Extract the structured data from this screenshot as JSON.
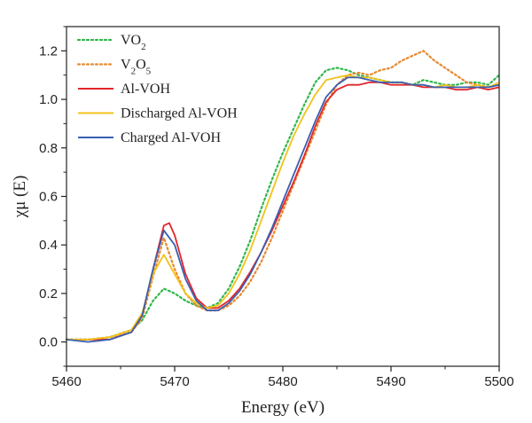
{
  "chart_data": {
    "type": "line",
    "xlabel": "Energy (eV)",
    "ylabel": "χμ (E)",
    "xlim": [
      5460,
      5500
    ],
    "ylim": [
      -0.1,
      1.3
    ],
    "x_ticks": [
      5460,
      5470,
      5480,
      5490,
      5500
    ],
    "x_tick_labels": [
      "5460",
      "5470",
      "5480",
      "5490",
      "5500"
    ],
    "y_ticks": [
      0.0,
      0.2,
      0.4,
      0.6,
      0.8,
      1.0,
      1.2
    ],
    "y_tick_labels": [
      "0.0",
      "0.2",
      "0.4",
      "0.6",
      "0.8",
      "1.0",
      "1.2"
    ],
    "grid": false,
    "legend_position": "top-left",
    "series": [
      {
        "name": "VO₂",
        "legend_base": "VO",
        "legend_sub1": "2",
        "legend_mid": "",
        "legend_sub2": "",
        "color": "#2fb84a",
        "dash": "dotted",
        "points": [
          [
            5460,
            0.01
          ],
          [
            5462,
            0.01
          ],
          [
            5464,
            0.02
          ],
          [
            5466,
            0.05
          ],
          [
            5467,
            0.09
          ],
          [
            5468,
            0.17
          ],
          [
            5469,
            0.22
          ],
          [
            5470,
            0.2
          ],
          [
            5471,
            0.17
          ],
          [
            5472,
            0.15
          ],
          [
            5473,
            0.14
          ],
          [
            5474,
            0.16
          ],
          [
            5475,
            0.22
          ],
          [
            5476,
            0.31
          ],
          [
            5477,
            0.42
          ],
          [
            5478,
            0.55
          ],
          [
            5479,
            0.67
          ],
          [
            5480,
            0.78
          ],
          [
            5481,
            0.88
          ],
          [
            5482,
            0.98
          ],
          [
            5483,
            1.07
          ],
          [
            5484,
            1.12
          ],
          [
            5485,
            1.13
          ],
          [
            5486,
            1.12
          ],
          [
            5487,
            1.1
          ],
          [
            5488,
            1.09
          ],
          [
            5489,
            1.08
          ],
          [
            5490,
            1.07
          ],
          [
            5491,
            1.07
          ],
          [
            5492,
            1.06
          ],
          [
            5493,
            1.08
          ],
          [
            5494,
            1.07
          ],
          [
            5495,
            1.06
          ],
          [
            5496,
            1.06
          ],
          [
            5497,
            1.07
          ],
          [
            5498,
            1.07
          ],
          [
            5499,
            1.06
          ],
          [
            5500,
            1.1
          ]
        ]
      },
      {
        "name": "V₂O₅",
        "legend_base": "V",
        "legend_sub1": "2",
        "legend_mid": "O",
        "legend_sub2": "5",
        "color": "#e8892f",
        "dash": "dotted",
        "points": [
          [
            5460,
            0.01
          ],
          [
            5462,
            0.01
          ],
          [
            5464,
            0.02
          ],
          [
            5466,
            0.04
          ],
          [
            5467,
            0.1
          ],
          [
            5468,
            0.27
          ],
          [
            5469,
            0.43
          ],
          [
            5470,
            0.3
          ],
          [
            5471,
            0.2
          ],
          [
            5472,
            0.15
          ],
          [
            5473,
            0.13
          ],
          [
            5474,
            0.13
          ],
          [
            5475,
            0.15
          ],
          [
            5476,
            0.19
          ],
          [
            5477,
            0.25
          ],
          [
            5478,
            0.33
          ],
          [
            5479,
            0.43
          ],
          [
            5480,
            0.54
          ],
          [
            5481,
            0.65
          ],
          [
            5482,
            0.76
          ],
          [
            5483,
            0.87
          ],
          [
            5484,
            0.98
          ],
          [
            5485,
            1.06
          ],
          [
            5486,
            1.1
          ],
          [
            5487,
            1.11
          ],
          [
            5488,
            1.1
          ],
          [
            5489,
            1.12
          ],
          [
            5490,
            1.13
          ],
          [
            5491,
            1.16
          ],
          [
            5492,
            1.18
          ],
          [
            5493,
            1.2
          ],
          [
            5494,
            1.16
          ],
          [
            5495,
            1.13
          ],
          [
            5496,
            1.1
          ],
          [
            5497,
            1.07
          ],
          [
            5498,
            1.06
          ],
          [
            5499,
            1.05
          ],
          [
            5500,
            1.06
          ]
        ]
      },
      {
        "name": "Al-VOH",
        "legend_base": "Al-VOH",
        "legend_sub1": "",
        "legend_mid": "",
        "legend_sub2": "",
        "color": "#e3262b",
        "dash": "solid",
        "points": [
          [
            5460,
            0.01
          ],
          [
            5462,
            0.01
          ],
          [
            5464,
            0.01
          ],
          [
            5466,
            0.04
          ],
          [
            5467,
            0.11
          ],
          [
            5468,
            0.3
          ],
          [
            5469,
            0.48
          ],
          [
            5469.5,
            0.49
          ],
          [
            5470,
            0.44
          ],
          [
            5471,
            0.28
          ],
          [
            5472,
            0.18
          ],
          [
            5473,
            0.14
          ],
          [
            5474,
            0.14
          ],
          [
            5475,
            0.17
          ],
          [
            5476,
            0.22
          ],
          [
            5477,
            0.29
          ],
          [
            5478,
            0.37
          ],
          [
            5479,
            0.46
          ],
          [
            5480,
            0.56
          ],
          [
            5481,
            0.66
          ],
          [
            5482,
            0.77
          ],
          [
            5483,
            0.89
          ],
          [
            5484,
            0.99
          ],
          [
            5485,
            1.04
          ],
          [
            5486,
            1.06
          ],
          [
            5487,
            1.06
          ],
          [
            5488,
            1.07
          ],
          [
            5489,
            1.07
          ],
          [
            5490,
            1.06
          ],
          [
            5491,
            1.06
          ],
          [
            5492,
            1.06
          ],
          [
            5493,
            1.05
          ],
          [
            5494,
            1.05
          ],
          [
            5495,
            1.05
          ],
          [
            5496,
            1.04
          ],
          [
            5497,
            1.04
          ],
          [
            5498,
            1.05
          ],
          [
            5499,
            1.04
          ],
          [
            5500,
            1.05
          ]
        ]
      },
      {
        "name": "Discharged Al-VOH",
        "legend_base": "Discharged Al-VOH",
        "legend_sub1": "",
        "legend_mid": "",
        "legend_sub2": "",
        "color": "#f2c21b",
        "dash": "solid",
        "points": [
          [
            5460,
            0.01
          ],
          [
            5462,
            0.01
          ],
          [
            5464,
            0.02
          ],
          [
            5466,
            0.05
          ],
          [
            5467,
            0.12
          ],
          [
            5468,
            0.28
          ],
          [
            5469,
            0.36
          ],
          [
            5470,
            0.28
          ],
          [
            5471,
            0.2
          ],
          [
            5472,
            0.16
          ],
          [
            5473,
            0.14
          ],
          [
            5474,
            0.15
          ],
          [
            5475,
            0.2
          ],
          [
            5476,
            0.28
          ],
          [
            5477,
            0.38
          ],
          [
            5478,
            0.5
          ],
          [
            5479,
            0.62
          ],
          [
            5480,
            0.74
          ],
          [
            5481,
            0.85
          ],
          [
            5482,
            0.94
          ],
          [
            5483,
            1.02
          ],
          [
            5484,
            1.08
          ],
          [
            5485,
            1.09
          ],
          [
            5486,
            1.1
          ],
          [
            5487,
            1.09
          ],
          [
            5488,
            1.09
          ],
          [
            5489,
            1.08
          ],
          [
            5490,
            1.07
          ],
          [
            5491,
            1.07
          ],
          [
            5492,
            1.06
          ],
          [
            5493,
            1.06
          ],
          [
            5494,
            1.05
          ],
          [
            5495,
            1.06
          ],
          [
            5496,
            1.05
          ],
          [
            5497,
            1.05
          ],
          [
            5498,
            1.06
          ],
          [
            5499,
            1.05
          ],
          [
            5500,
            1.07
          ]
        ]
      },
      {
        "name": "Charged Al-VOH",
        "legend_base": "Charged Al-VOH",
        "legend_sub1": "",
        "legend_mid": "",
        "legend_sub2": "",
        "color": "#3a5fb0",
        "dash": "solid",
        "points": [
          [
            5460,
            0.01
          ],
          [
            5462,
            0.0
          ],
          [
            5464,
            0.01
          ],
          [
            5466,
            0.04
          ],
          [
            5467,
            0.11
          ],
          [
            5468,
            0.3
          ],
          [
            5469,
            0.46
          ],
          [
            5470,
            0.4
          ],
          [
            5471,
            0.26
          ],
          [
            5472,
            0.17
          ],
          [
            5473,
            0.13
          ],
          [
            5474,
            0.13
          ],
          [
            5475,
            0.16
          ],
          [
            5476,
            0.21
          ],
          [
            5477,
            0.28
          ],
          [
            5478,
            0.37
          ],
          [
            5479,
            0.47
          ],
          [
            5480,
            0.58
          ],
          [
            5481,
            0.69
          ],
          [
            5482,
            0.8
          ],
          [
            5483,
            0.91
          ],
          [
            5484,
            1.01
          ],
          [
            5485,
            1.06
          ],
          [
            5486,
            1.09
          ],
          [
            5487,
            1.09
          ],
          [
            5488,
            1.08
          ],
          [
            5489,
            1.07
          ],
          [
            5490,
            1.07
          ],
          [
            5491,
            1.07
          ],
          [
            5492,
            1.06
          ],
          [
            5493,
            1.06
          ],
          [
            5494,
            1.05
          ],
          [
            5495,
            1.05
          ],
          [
            5496,
            1.05
          ],
          [
            5497,
            1.05
          ],
          [
            5498,
            1.05
          ],
          [
            5499,
            1.05
          ],
          [
            5500,
            1.06
          ]
        ]
      }
    ]
  }
}
